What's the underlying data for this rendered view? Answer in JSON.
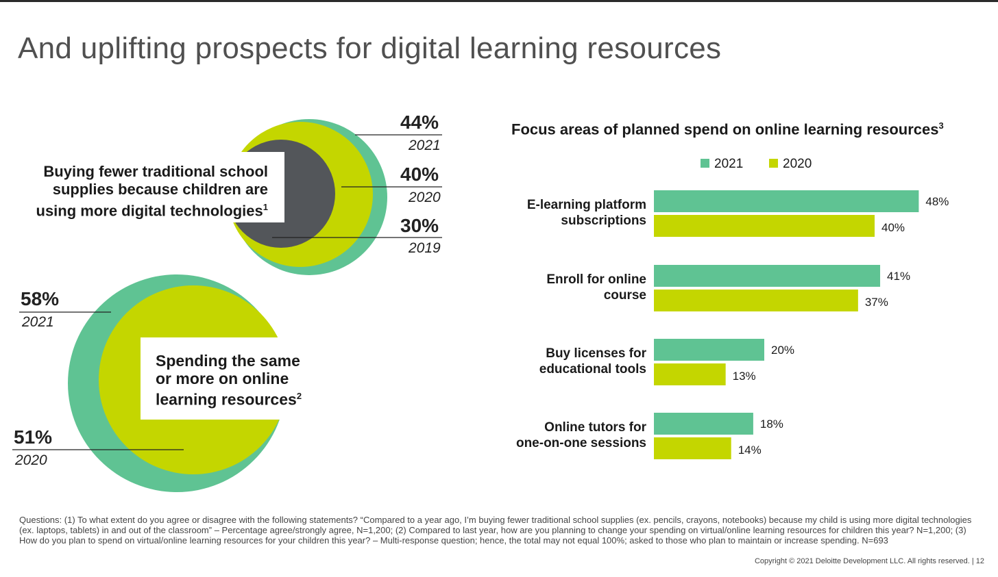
{
  "title": "And uplifting prospects for digital learning resources",
  "colors": {
    "green": "#5fc393",
    "lime": "#c4d600",
    "dark": "#53565a"
  },
  "stat1": {
    "text": "Buying fewer traditional school supplies because children are using more digital technologies",
    "footnote": "1",
    "values": [
      {
        "pct": "44%",
        "year": "2021"
      },
      {
        "pct": "40%",
        "year": "2020"
      },
      {
        "pct": "30%",
        "year": "2019"
      }
    ]
  },
  "stat2": {
    "text": "Spending the same or more on online learning resources",
    "footnote": "2",
    "values": [
      {
        "pct": "58%",
        "year": "2021"
      },
      {
        "pct": "51%",
        "year": "2020"
      }
    ]
  },
  "chart_data": {
    "type": "bar",
    "orientation": "horizontal",
    "title": "Focus areas of planned spend on online learning resources",
    "title_footnote": "3",
    "categories": [
      "E-learning platform subscriptions",
      "Enroll for online course",
      "Buy licenses for educational tools",
      "Online tutors for one-on-one sessions"
    ],
    "series": [
      {
        "name": "2021",
        "color": "#5fc393",
        "values": [
          48,
          41,
          20,
          18
        ]
      },
      {
        "name": "2020",
        "color": "#c4d600",
        "values": [
          40,
          37,
          13,
          14
        ]
      }
    ],
    "value_suffix": "%",
    "xlim": [
      0,
      60
    ],
    "legend": "top"
  },
  "footnote": "Questions: (1) To what extent do you agree or disagree with the following statements? “Compared to a year ago, I’m buying fewer traditional school supplies (ex. pencils, crayons, notebooks) because my child is using more digital technologies (ex. laptops, tablets) in and out of the classroom” – Percentage agree/strongly agree, N=1,200; (2) Compared to last year, how are you planning to change your spending on virtual/online learning resources for children this year? N=1,200; (3) How do you plan to spend on virtual/online learning resources for your children this year? – Multi-response question; hence, the total may not equal 100%; asked to those who plan to maintain or increase spending. N=693",
  "copyright": "Copyright © 2021 Deloitte Development LLC. All rights reserved.  |   12"
}
